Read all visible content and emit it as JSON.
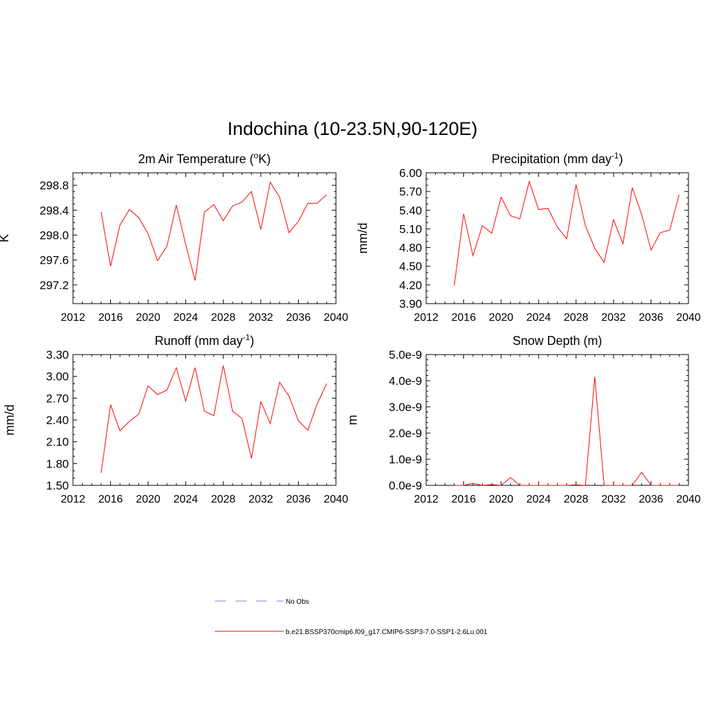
{
  "main_title": "Indochina (10-23.5N,90-120E)",
  "colors": {
    "series": "#ff0000",
    "obs": "#9999dd",
    "axis": "#000000"
  },
  "legend": {
    "obs_label": "No Obs",
    "model_label": "b.e21.BSSP370cmip6.f09_g17.CMIP6-SSP3-7.0-SSP1-2.6Lu.001"
  },
  "chart_data": [
    {
      "type": "line",
      "title": "2m Air Temperature (",
      "title_sup": "o",
      "title_after": "K)",
      "ylabel": "K",
      "xlim": [
        2012,
        2040
      ],
      "ylim": [
        296.9,
        299.0
      ],
      "xticks": [
        2012,
        2016,
        2020,
        2024,
        2028,
        2032,
        2036,
        2040
      ],
      "yticks": [
        297.2,
        297.6,
        298.0,
        298.4,
        298.8
      ],
      "ytick_labels": [
        "297.2",
        "297.6",
        "298.0",
        "298.4",
        "298.8"
      ],
      "xminor": 1,
      "yminor": 0.1,
      "series": [
        {
          "x": [
            2015,
            2016,
            2017,
            2018,
            2019,
            2020,
            2021,
            2022,
            2023,
            2024,
            2025,
            2026,
            2027,
            2028,
            2029,
            2030,
            2031,
            2032,
            2033,
            2034,
            2035,
            2036,
            2037,
            2038,
            2039
          ],
          "y": [
            298.37,
            297.5,
            298.16,
            298.41,
            298.28,
            298.02,
            297.59,
            297.82,
            298.48,
            297.85,
            297.27,
            298.37,
            298.49,
            298.23,
            298.47,
            298.53,
            298.7,
            298.09,
            298.85,
            298.61,
            298.04,
            298.22,
            298.51,
            298.51,
            298.65
          ]
        }
      ]
    },
    {
      "type": "line",
      "title": "Precipitation (mm day",
      "title_sup": "-1",
      "title_after": ")",
      "ylabel": "mm/d",
      "xlim": [
        2012,
        2040
      ],
      "ylim": [
        3.9,
        6.0
      ],
      "xticks": [
        2012,
        2016,
        2020,
        2024,
        2028,
        2032,
        2036,
        2040
      ],
      "yticks": [
        3.9,
        4.2,
        4.5,
        4.8,
        5.1,
        5.4,
        5.7,
        6.0
      ],
      "ytick_labels": [
        "3.90",
        "4.20",
        "4.50",
        "4.80",
        "5.10",
        "5.40",
        "5.70",
        "6.00"
      ],
      "xminor": 1,
      "yminor": 0.1,
      "series": [
        {
          "x": [
            2015,
            2016,
            2017,
            2018,
            2019,
            2020,
            2021,
            2022,
            2023,
            2024,
            2025,
            2026,
            2027,
            2028,
            2029,
            2030,
            2031,
            2032,
            2033,
            2034,
            2035,
            2036,
            2037,
            2038,
            2039
          ],
          "y": [
            4.19,
            5.34,
            4.67,
            5.15,
            5.03,
            5.61,
            5.31,
            5.26,
            5.86,
            5.41,
            5.43,
            5.13,
            4.94,
            5.81,
            5.15,
            4.79,
            4.56,
            5.25,
            4.86,
            5.76,
            5.33,
            4.76,
            5.04,
            5.08,
            5.65
          ]
        }
      ]
    },
    {
      "type": "line",
      "title": "Runoff (mm day",
      "title_sup": "-1",
      "title_after": ")",
      "ylabel": "mm/d",
      "xlim": [
        2012,
        2040
      ],
      "ylim": [
        1.5,
        3.3
      ],
      "xticks": [
        2012,
        2016,
        2020,
        2024,
        2028,
        2032,
        2036,
        2040
      ],
      "yticks": [
        1.5,
        1.8,
        2.1,
        2.4,
        2.7,
        3.0,
        3.3
      ],
      "ytick_labels": [
        "1.50",
        "1.80",
        "2.10",
        "2.40",
        "2.70",
        "3.00",
        "3.30"
      ],
      "xminor": 1,
      "yminor": 0.1,
      "series": [
        {
          "x": [
            2015,
            2016,
            2017,
            2018,
            2019,
            2020,
            2021,
            2022,
            2023,
            2024,
            2025,
            2026,
            2027,
            2028,
            2029,
            2030,
            2031,
            2032,
            2033,
            2034,
            2035,
            2036,
            2037,
            2038,
            2039
          ],
          "y": [
            1.67,
            2.61,
            2.25,
            2.38,
            2.48,
            2.87,
            2.75,
            2.81,
            3.12,
            2.66,
            3.12,
            2.52,
            2.46,
            3.15,
            2.52,
            2.42,
            1.87,
            2.65,
            2.35,
            2.92,
            2.73,
            2.39,
            2.26,
            2.62,
            2.9
          ]
        }
      ]
    },
    {
      "type": "line",
      "title": "Snow Depth (m)",
      "title_sup": "",
      "title_after": "",
      "ylabel": "m",
      "xlim": [
        2012,
        2040
      ],
      "ylim": [
        0,
        5e-09
      ],
      "xticks": [
        2012,
        2016,
        2020,
        2024,
        2028,
        2032,
        2036,
        2040
      ],
      "yticks": [
        0,
        1e-09,
        2e-09,
        3e-09,
        4e-09,
        5e-09
      ],
      "ytick_labels": [
        "0.0e-9",
        "1.0e-9",
        "2.0e-9",
        "3.0e-9",
        "4.0e-9",
        "5.0e-9"
      ],
      "xminor": 1,
      "yminor": 2e-10,
      "series": [
        {
          "x": [
            2015,
            2016,
            2017,
            2018,
            2019,
            2020,
            2021,
            2022,
            2023,
            2024,
            2025,
            2026,
            2027,
            2028,
            2029,
            2030,
            2031,
            2032,
            2033,
            2034,
            2035,
            2036,
            2037,
            2038,
            2039
          ],
          "y": [
            0,
            0,
            8e-11,
            0,
            3e-11,
            0,
            3e-10,
            0,
            0,
            0,
            0,
            0,
            0,
            2e-11,
            0,
            4.15e-09,
            0,
            0,
            0,
            0,
            5e-10,
            0,
            0,
            0,
            0
          ]
        }
      ]
    }
  ]
}
